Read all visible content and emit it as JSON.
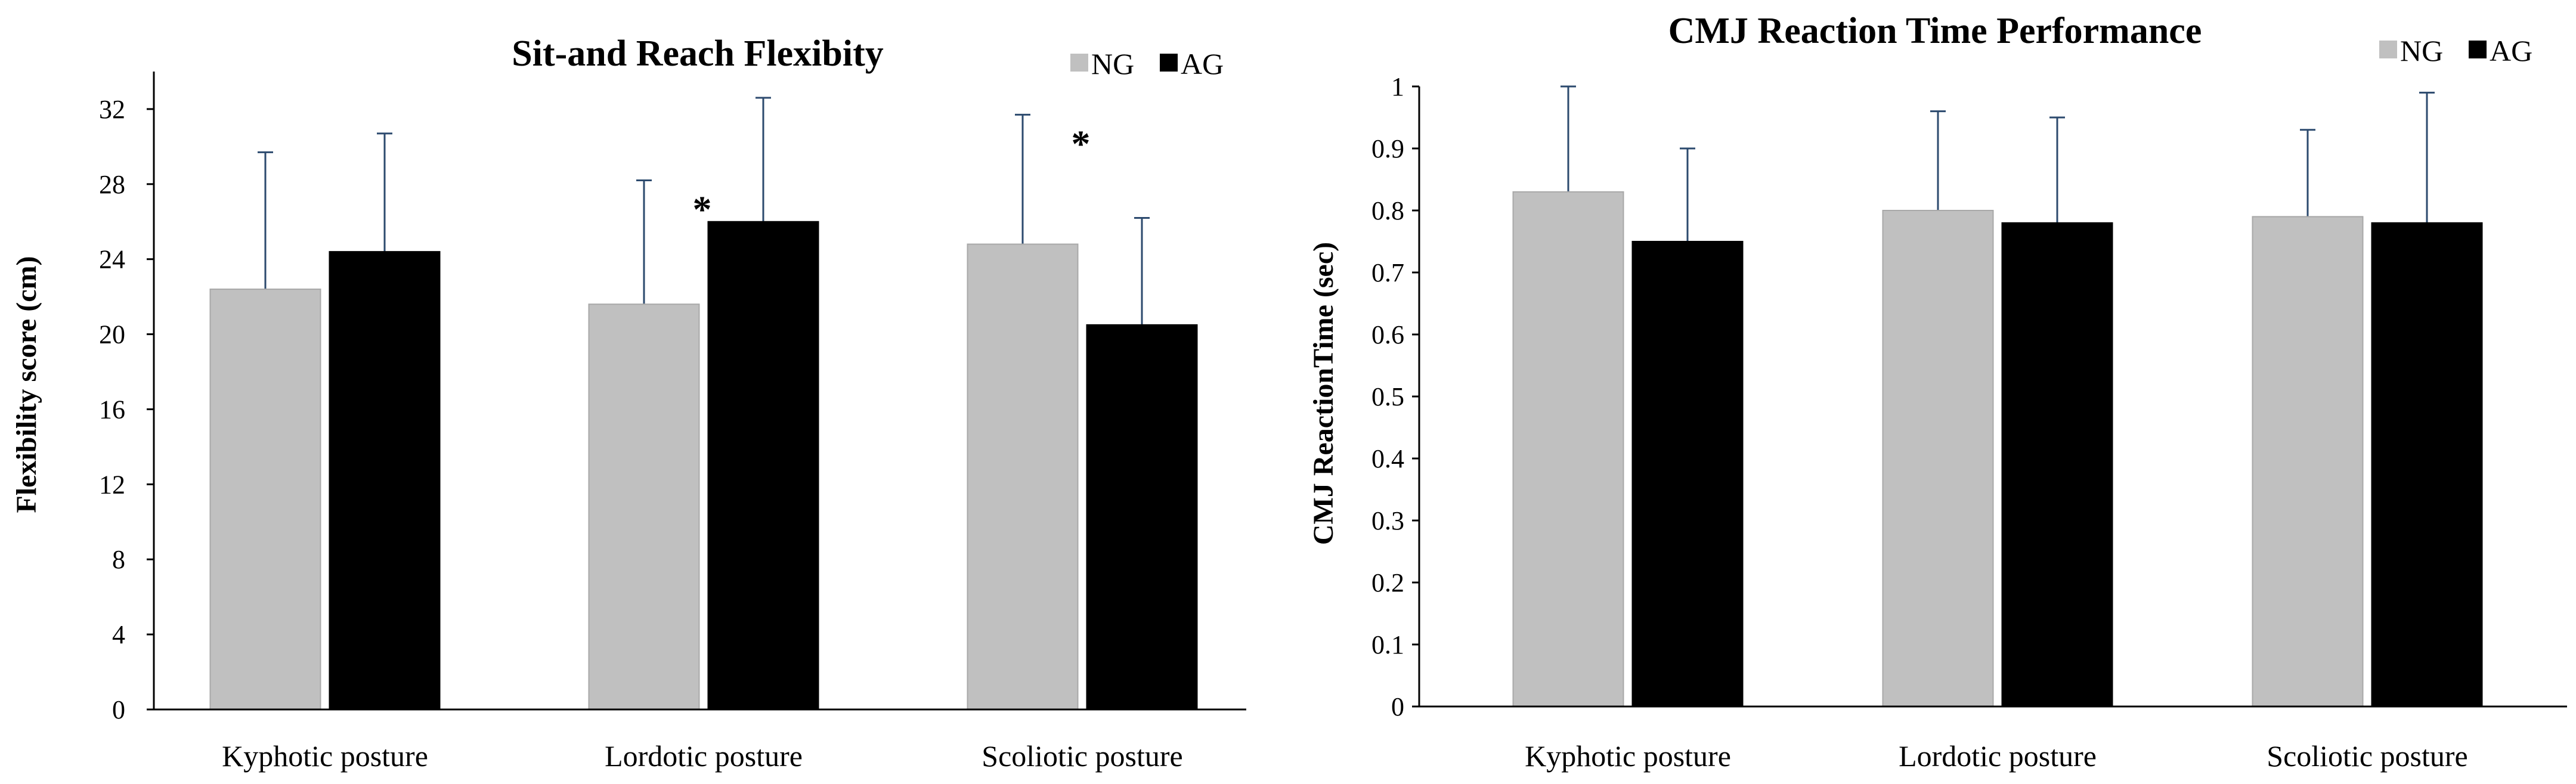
{
  "chart_data": [
    {
      "type": "bar",
      "title": "Sit-and Reach Flexibity",
      "xlabel": "",
      "ylabel": "Flexibility score (cm)",
      "ylim": [
        0,
        34
      ],
      "yticks": [
        0,
        4,
        8,
        12,
        16,
        20,
        24,
        28,
        32
      ],
      "tick_labels": [
        "0",
        "4",
        "8",
        "12",
        "16",
        "20",
        "24",
        "28",
        "32"
      ],
      "categories": [
        "Kyphotic posture",
        "Lordotic posture",
        "Scoliotic posture"
      ],
      "legend_position": "top-right",
      "series": [
        {
          "name": "NG",
          "color": "#c0c0c0",
          "values": [
            22.4,
            21.6,
            24.8
          ],
          "errors": [
            7.3,
            6.6,
            6.9
          ]
        },
        {
          "name": "AG",
          "color": "#000000",
          "values": [
            24.4,
            26.0,
            20.5
          ],
          "errors": [
            6.3,
            6.6,
            5.7
          ]
        }
      ],
      "annotations": [
        {
          "text": "*",
          "category": 1,
          "series": 0
        },
        {
          "text": "*",
          "category": 2,
          "series": 0
        }
      ]
    },
    {
      "type": "bar",
      "title": "CMJ Reaction Time Performance",
      "xlabel": "",
      "ylabel": "CMJ ReactionTime (sec)",
      "ylim": [
        0,
        1
      ],
      "yticks": [
        0,
        0.1,
        0.2,
        0.3,
        0.4,
        0.5,
        0.6,
        0.7,
        0.8,
        0.9,
        1
      ],
      "tick_labels": [
        "0",
        "0.1",
        "0.2",
        "0.3",
        "0.4",
        "0.5",
        "0.6",
        "0.7",
        "0.8",
        "0.9",
        "1"
      ],
      "categories": [
        "Kyphotic posture",
        "Lordotic posture",
        "Scoliotic posture"
      ],
      "legend_position": "top-right",
      "series": [
        {
          "name": "NG",
          "color": "#c0c0c0",
          "values": [
            0.83,
            0.8,
            0.79
          ],
          "errors": [
            0.17,
            0.16,
            0.14
          ]
        },
        {
          "name": "AG",
          "color": "#000000",
          "values": [
            0.75,
            0.78,
            0.78
          ],
          "errors": [
            0.15,
            0.17,
            0.21
          ]
        }
      ],
      "annotations": []
    }
  ]
}
